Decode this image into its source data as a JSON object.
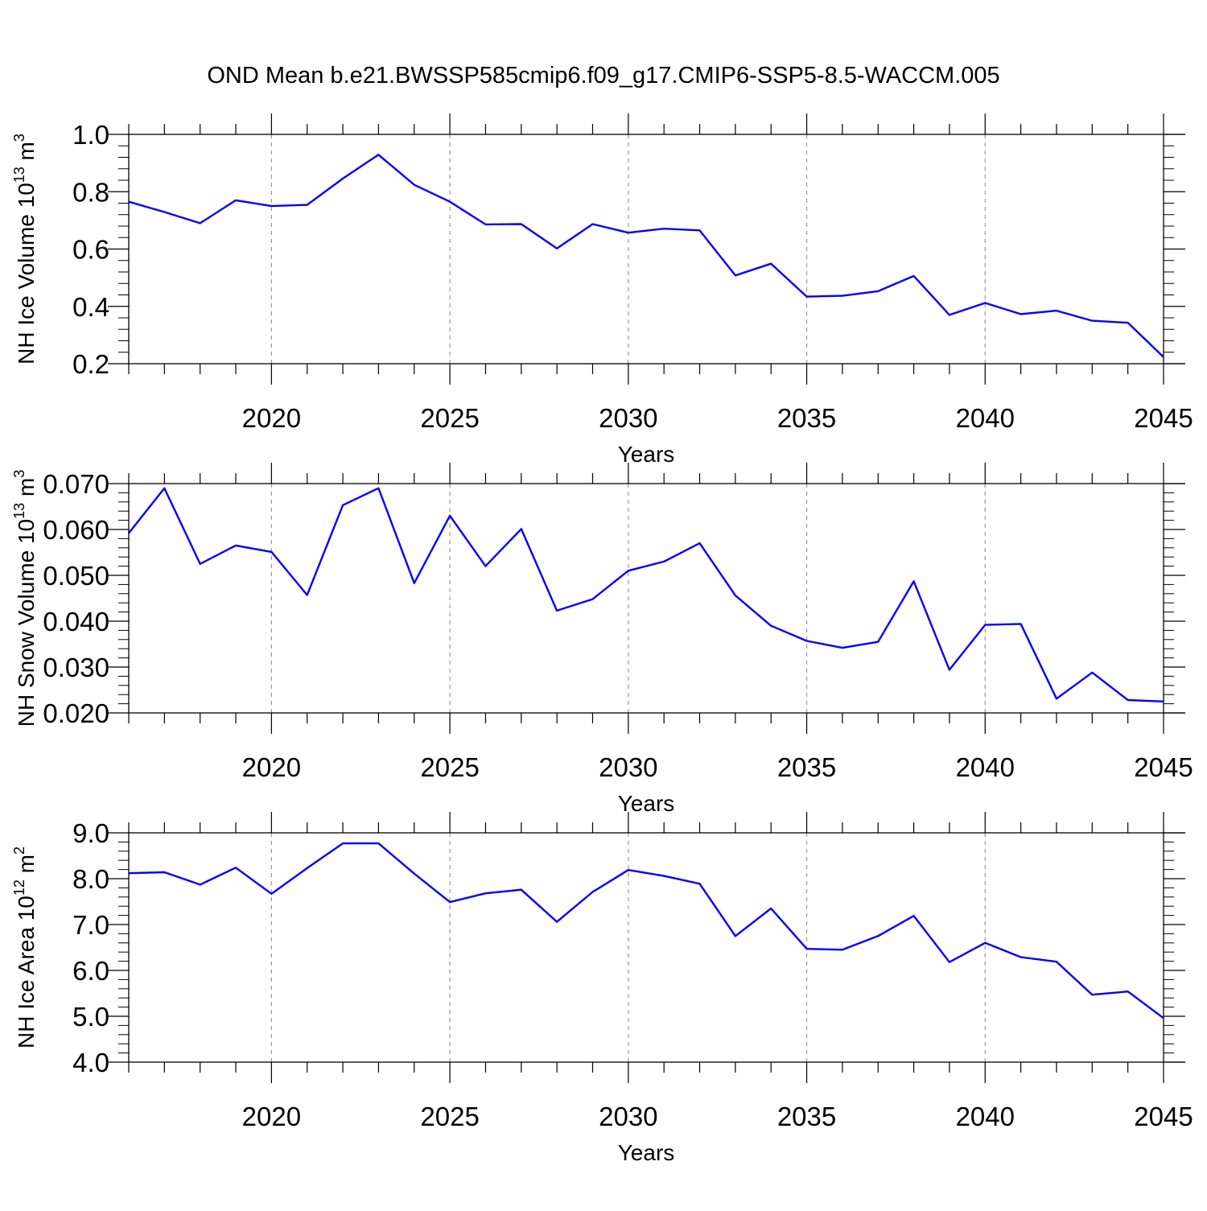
{
  "title": "OND Mean b.e21.BWSSP585cmip6.f09_g17.CMIP6-SSP5-8.5-WACCM.005",
  "colors": {
    "line": "#0000ff",
    "axis": "#000000",
    "grid": "#999999",
    "background": "#ffffff"
  },
  "chart_data": [
    {
      "type": "line",
      "title": "",
      "xlabel": "Years",
      "ylabel_main": "NH Ice Volume 10",
      "ylabel_sup": "13",
      "ylabel_unit": " m",
      "ylabel_unit_sup": "3",
      "xlim": [
        2016,
        2045
      ],
      "ylim": [
        0.2,
        1.0
      ],
      "xticks": [
        2020,
        2025,
        2030,
        2035,
        2040,
        2045
      ],
      "xtick_labels": [
        "2020",
        "2025",
        "2030",
        "2035",
        "2040",
        "2045"
      ],
      "yticks": [
        0.2,
        0.4,
        0.6,
        0.8,
        1.0
      ],
      "ytick_labels": [
        "0.2",
        "0.4",
        "0.6",
        "0.8",
        "1.0"
      ],
      "grid": "vertical dashed at major x ticks",
      "series": [
        {
          "name": "NH Ice Volume",
          "x": [
            2016,
            2017,
            2018,
            2019,
            2020,
            2021,
            2022,
            2023,
            2024,
            2025,
            2026,
            2027,
            2028,
            2029,
            2030,
            2031,
            2032,
            2033,
            2034,
            2035,
            2036,
            2037,
            2038,
            2039,
            2040,
            2041,
            2042,
            2043,
            2044,
            2045
          ],
          "values": [
            0.765,
            0.729,
            0.69,
            0.77,
            0.75,
            0.754,
            0.846,
            0.929,
            0.824,
            0.765,
            0.686,
            0.687,
            0.602,
            0.687,
            0.657,
            0.671,
            0.665,
            0.508,
            0.549,
            0.434,
            0.437,
            0.453,
            0.506,
            0.37,
            0.412,
            0.373,
            0.385,
            0.35,
            0.343,
            0.223
          ]
        }
      ]
    },
    {
      "type": "line",
      "title": "",
      "xlabel": "Years",
      "ylabel_main": "NH Snow Volume 10",
      "ylabel_sup": "13",
      "ylabel_unit": " m",
      "ylabel_unit_sup": "3",
      "xlim": [
        2016,
        2045
      ],
      "ylim": [
        0.02,
        0.07
      ],
      "xticks": [
        2020,
        2025,
        2030,
        2035,
        2040,
        2045
      ],
      "xtick_labels": [
        "2020",
        "2025",
        "2030",
        "2035",
        "2040",
        "2045"
      ],
      "yticks": [
        0.02,
        0.03,
        0.04,
        0.05,
        0.06,
        0.07
      ],
      "ytick_labels": [
        "0.020",
        "0.030",
        "0.040",
        "0.050",
        "0.060",
        "0.070"
      ],
      "grid": "vertical dashed at major x ticks",
      "series": [
        {
          "name": "NH Snow Volume",
          "x": [
            2016,
            2017,
            2018,
            2019,
            2020,
            2021,
            2022,
            2023,
            2024,
            2025,
            2026,
            2027,
            2028,
            2029,
            2030,
            2031,
            2032,
            2033,
            2034,
            2035,
            2036,
            2037,
            2038,
            2039,
            2040,
            2041,
            2042,
            2043,
            2044,
            2045
          ],
          "values": [
            0.0592,
            0.069,
            0.0525,
            0.0565,
            0.0551,
            0.0457,
            0.0653,
            0.069,
            0.0483,
            0.063,
            0.052,
            0.0601,
            0.0423,
            0.0448,
            0.051,
            0.053,
            0.057,
            0.0456,
            0.039,
            0.0357,
            0.0342,
            0.0355,
            0.0487,
            0.0294,
            0.0392,
            0.0394,
            0.0231,
            0.0288,
            0.0228,
            0.0225
          ]
        }
      ]
    },
    {
      "type": "line",
      "title": "",
      "xlabel": "Years",
      "ylabel_main": "NH Ice Area 10",
      "ylabel_sup": "12",
      "ylabel_unit": " m",
      "ylabel_unit_sup": "2",
      "xlim": [
        2016,
        2045
      ],
      "ylim": [
        4.0,
        9.0
      ],
      "xticks": [
        2020,
        2025,
        2030,
        2035,
        2040,
        2045
      ],
      "xtick_labels": [
        "2020",
        "2025",
        "2030",
        "2035",
        "2040",
        "2045"
      ],
      "yticks": [
        4.0,
        5.0,
        6.0,
        7.0,
        8.0,
        9.0
      ],
      "ytick_labels": [
        "4.0",
        "5.0",
        "6.0",
        "7.0",
        "8.0",
        "9.0"
      ],
      "grid": "vertical dashed at major x ticks",
      "series": [
        {
          "name": "NH Ice Area",
          "x": [
            2016,
            2017,
            2018,
            2019,
            2020,
            2021,
            2022,
            2023,
            2024,
            2025,
            2026,
            2027,
            2028,
            2029,
            2030,
            2031,
            2032,
            2033,
            2034,
            2035,
            2036,
            2037,
            2038,
            2039,
            2040,
            2041,
            2042,
            2043,
            2044,
            2045
          ],
          "values": [
            8.12,
            8.14,
            7.87,
            8.24,
            7.67,
            8.23,
            8.77,
            8.77,
            8.11,
            7.49,
            7.68,
            7.76,
            7.06,
            7.71,
            8.19,
            8.06,
            7.89,
            6.75,
            7.35,
            6.47,
            6.45,
            6.75,
            7.19,
            6.18,
            6.6,
            6.29,
            6.19,
            5.47,
            5.54,
            4.96
          ]
        }
      ]
    }
  ]
}
